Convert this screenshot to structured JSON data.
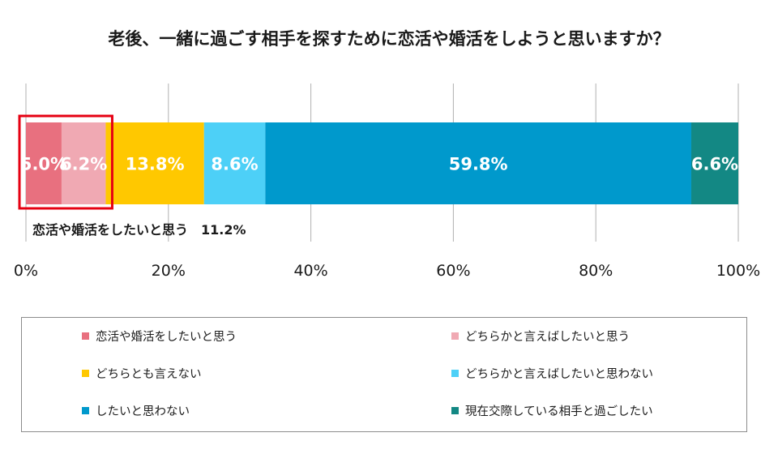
{
  "chart_data": {
    "type": "bar",
    "orientation": "horizontal-stacked-100",
    "title": "老後、一緒に過ごす相手を探すために恋活や婚活をしようと思いますか？",
    "series": [
      {
        "name": "恋活や婚活をしたいと思う",
        "value": 5.0,
        "label": "5.0%",
        "color": "#e8707f"
      },
      {
        "name": "どちらかと言えばしたいと思う",
        "value": 6.2,
        "label": "6.2%",
        "color": "#f0a9b3"
      },
      {
        "name": "どちらとも言えない",
        "value": 13.8,
        "label": "13.8%",
        "color": "#ffc800"
      },
      {
        "name": "どちらかと言えばしたいと思わない",
        "value": 8.6,
        "label": "8.6%",
        "color": "#4dd0f7"
      },
      {
        "name": "したいと思わない",
        "value": 59.8,
        "label": "59.8%",
        "color": "#0099cc"
      },
      {
        "name": "現在交際している相手と過ごしたい",
        "value": 6.6,
        "label": "6.6%",
        "color": "#138884"
      }
    ],
    "xlim": [
      0,
      100
    ],
    "xticks": [
      "0%",
      "20%",
      "40%",
      "60%",
      "80%",
      "100%"
    ],
    "grid": true,
    "legend_position": "bottom",
    "annotation": {
      "text": "恋活や婚活をしたいと思う　11.2%",
      "highlight_color": "#e60012",
      "highlight_range": [
        0,
        11.2
      ]
    }
  }
}
